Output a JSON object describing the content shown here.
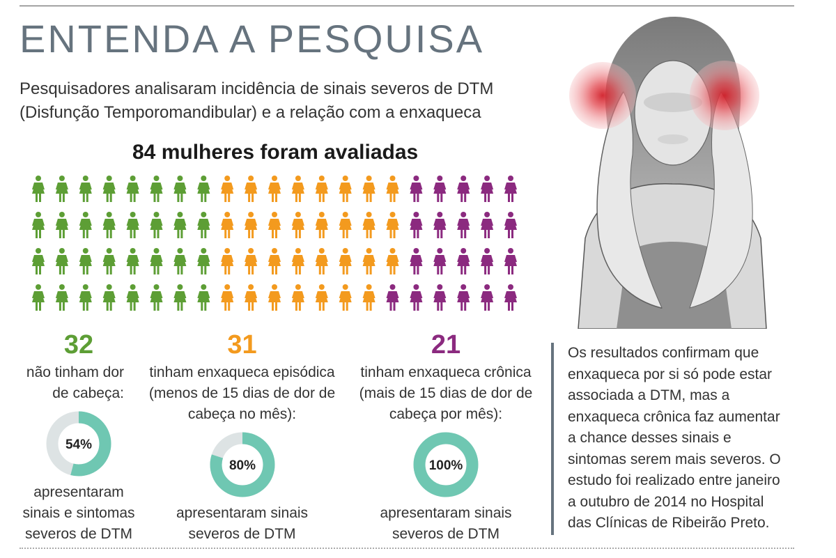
{
  "title": "ENTENDA A PESQUISA",
  "subtitle_lines": [
    "Pesquisadores analisaram incidência de sinais severos de DTM",
    "(Disfunção Temporomandibular) e a relação com a enxaqueca"
  ],
  "headline": "84 mulheres foram avaliadas",
  "colors": {
    "green": "#5d9e35",
    "orange": "#f39a1e",
    "purple": "#8b2a7f",
    "teal": "#6fc7b2",
    "track": "#dde3e4"
  },
  "groups": [
    {
      "count": "32",
      "desc_lines": [
        "não tinham dor",
        "de cabeça:"
      ],
      "percent_label": "54%",
      "result_lines": [
        "apresentaram",
        "sinais e sintomas",
        "severos de DTM"
      ]
    },
    {
      "count": "31",
      "desc_lines": [
        "tinham enxaqueca episódica",
        "(menos de 15 dias de dor de",
        "cabeça no mês):"
      ],
      "percent_label": "80%",
      "result_lines": [
        "apresentaram sinais",
        "severos de DTM"
      ]
    },
    {
      "count": "21",
      "desc_lines": [
        "tinham enxaqueca crônica",
        "(mais de 15 dias de dor de",
        "cabeça por mês):"
      ],
      "percent_label": "100%",
      "result_lines": [
        "apresentaram sinais",
        "severos de DTM"
      ]
    }
  ],
  "sidebar_lines": [
    "Os resultados confirmam que",
    "enxaqueca por si só pode estar",
    "associada a DTM, mas a",
    "enxaqueca crônica faz aumentar",
    "a chance desses sinais e",
    "sintomas serem mais severos. O",
    "estudo foi realizado entre janeiro",
    "a outubro de 2014 no Hospital",
    "das Clínicas de Ribeirão Preto."
  ],
  "chart_data": [
    {
      "type": "pictogram",
      "total": 84,
      "categories": [
        "não tinham dor de cabeça",
        "enxaqueca episódica",
        "enxaqueca crônica"
      ],
      "values": [
        32,
        31,
        21
      ]
    },
    {
      "type": "donut",
      "categories": [
        "não tinham dor de cabeça",
        "enxaqueca episódica",
        "enxaqueca crônica"
      ],
      "values": [
        54,
        80,
        100
      ],
      "unit": "%"
    }
  ]
}
